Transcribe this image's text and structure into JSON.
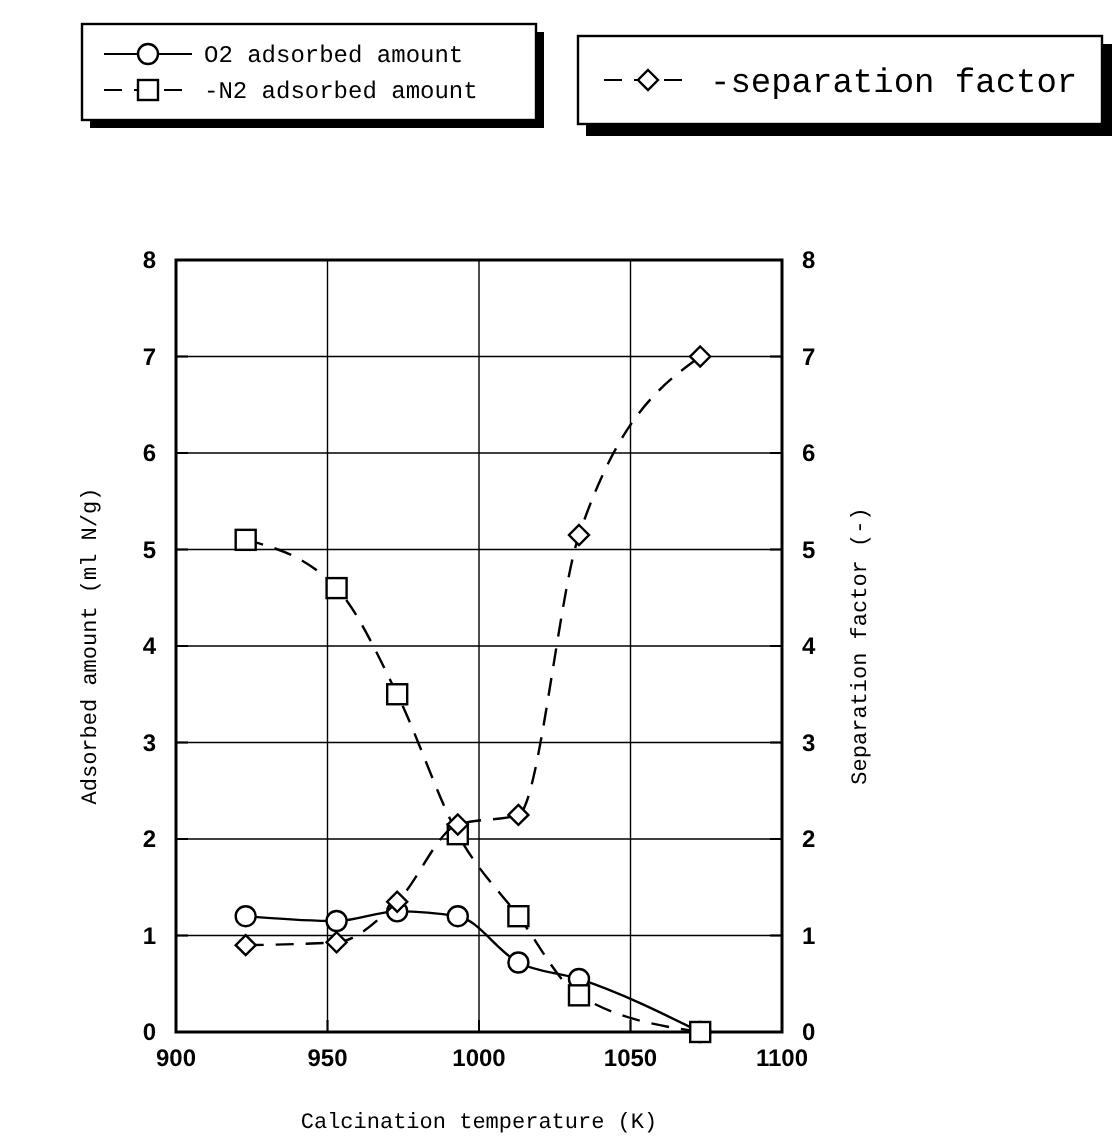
{
  "chart_data": {
    "type": "line",
    "xlabel": "Calcination temperature (K)",
    "ylabel": "Adsorbed amount (ml N/g)",
    "y2label": "Separation factor (-)",
    "x": [
      923,
      953,
      973,
      993,
      1013,
      1033,
      1073
    ],
    "series": [
      {
        "name": "O2 adsorbed amount",
        "color": "#000000",
        "values": [
          1.2,
          1.15,
          1.25,
          1.2,
          0.72,
          0.55,
          0
        ],
        "marker": "circle",
        "line_style": "solid"
      },
      {
        "name": "-N2 adsorbed amount",
        "color": "#000000",
        "values": [
          5.1,
          4.6,
          3.5,
          2.05,
          1.2,
          0.38,
          0
        ],
        "marker": "square",
        "line_style": "dashed"
      },
      {
        "name": "-separation factor",
        "color": "#000000",
        "values": [
          0.9,
          0.93,
          1.35,
          2.15,
          2.25,
          5.15,
          7.0
        ],
        "marker": "diamond",
        "line_style": "dashed",
        "axis": "y2"
      }
    ],
    "xlim": [
      900,
      1100
    ],
    "xticks": [
      900,
      950,
      1000,
      1050,
      1100
    ],
    "ylim": [
      0,
      8
    ],
    "yticks": [
      0,
      1,
      2,
      3,
      4,
      5,
      6,
      7,
      8
    ],
    "y2lim": [
      0,
      8
    ],
    "y2ticks": [
      0,
      1,
      2,
      3,
      4,
      5,
      6,
      7,
      8
    ],
    "grid": true,
    "legend": "top"
  }
}
